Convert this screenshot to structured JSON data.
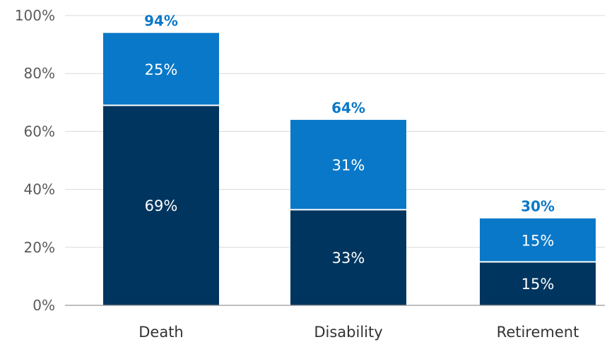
{
  "chart_data": {
    "type": "bar",
    "stacked": true,
    "categories": [
      "Death",
      "Disability",
      "Retirement"
    ],
    "series": [
      {
        "values": [
          69,
          33,
          15
        ],
        "color": "#00355f"
      },
      {
        "values": [
          25,
          31,
          15
        ],
        "color": "#0a78c8"
      }
    ],
    "value_labels": {
      "bottom": [
        "69%",
        "33%",
        "15%"
      ],
      "top": [
        "25%",
        "31%",
        "15%"
      ]
    },
    "totals": [
      94,
      64,
      30
    ],
    "total_labels": [
      "94%",
      "64%",
      "30%"
    ],
    "ylim": [
      0,
      100
    ],
    "yticks": [
      0,
      20,
      40,
      60,
      80,
      100
    ],
    "ytick_labels": [
      "0%",
      "20%",
      "40%",
      "60%",
      "80%",
      "100%"
    ],
    "grid": true,
    "gridline_color": "#d9d9d9",
    "axis_color": "#999999",
    "total_label_color": "#0a78c8",
    "segment_label_color": "#ffffff"
  }
}
